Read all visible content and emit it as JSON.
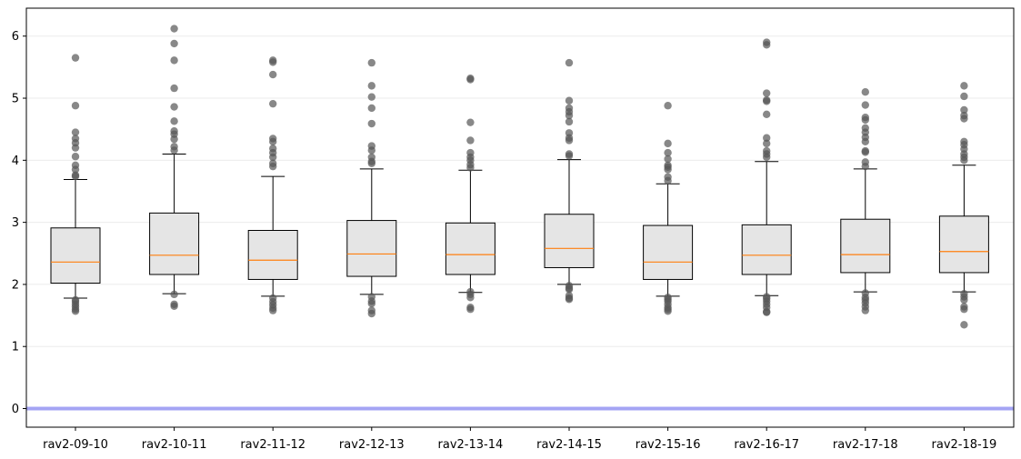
{
  "chart_data": {
    "type": "box",
    "title": "",
    "xlabel": "",
    "ylabel": "",
    "categories": [
      "rav2-09-10",
      "rav2-10-11",
      "rav2-11-12",
      "rav2-12-13",
      "rav2-13-14",
      "rav2-14-15",
      "rav2-15-16",
      "rav2-16-17",
      "rav2-17-18",
      "rav2-18-19"
    ],
    "ylim": [
      -0.3,
      6.45
    ],
    "yticks": [
      0,
      1,
      2,
      3,
      4,
      5,
      6
    ],
    "grid": "y",
    "reference_line": {
      "y": 0,
      "color": "#a4a4f4"
    },
    "colors": {
      "box_fill": "#e5e5e5",
      "median": "#ff7f0e",
      "outlier": "#555555",
      "grid": "#ebebeb"
    },
    "boxes": [
      {
        "whisker_low": 1.78,
        "q1": 2.02,
        "median": 2.36,
        "q3": 2.91,
        "whisker_high": 3.69,
        "outliers": [
          5.65,
          4.88,
          4.45,
          4.35,
          4.28,
          4.2,
          4.06,
          3.92,
          3.85,
          3.76,
          3.74,
          1.75,
          1.72,
          1.68,
          1.64,
          1.6,
          1.57
        ]
      },
      {
        "whisker_low": 1.85,
        "q1": 2.16,
        "median": 2.47,
        "q3": 3.15,
        "whisker_high": 4.1,
        "outliers": [
          6.12,
          5.88,
          5.61,
          5.16,
          4.86,
          4.63,
          4.47,
          4.42,
          4.34,
          4.22,
          4.16,
          1.84,
          1.68,
          1.65
        ]
      },
      {
        "whisker_low": 1.81,
        "q1": 2.08,
        "median": 2.39,
        "q3": 2.87,
        "whisker_high": 3.74,
        "outliers": [
          5.61,
          5.58,
          5.38,
          4.91,
          4.35,
          4.3,
          4.19,
          4.12,
          4.05,
          3.95,
          3.9,
          1.78,
          1.72,
          1.67,
          1.62,
          1.58
        ]
      },
      {
        "whisker_low": 1.84,
        "q1": 2.13,
        "median": 2.49,
        "q3": 3.03,
        "whisker_high": 3.86,
        "outliers": [
          5.57,
          5.2,
          5.02,
          4.84,
          4.59,
          4.23,
          4.16,
          4.05,
          3.98,
          3.95,
          1.8,
          1.73,
          1.69,
          1.58,
          1.53
        ]
      },
      {
        "whisker_low": 1.87,
        "q1": 2.16,
        "median": 2.48,
        "q3": 2.99,
        "whisker_high": 3.84,
        "outliers": [
          5.32,
          5.3,
          4.61,
          4.32,
          4.12,
          4.05,
          4.0,
          3.93,
          3.88,
          1.88,
          1.84,
          1.79,
          1.63,
          1.6
        ]
      },
      {
        "whisker_low": 2.0,
        "q1": 2.27,
        "median": 2.58,
        "q3": 3.13,
        "whisker_high": 4.01,
        "outliers": [
          5.57,
          4.96,
          4.84,
          4.78,
          4.72,
          4.62,
          4.44,
          4.36,
          4.32,
          4.1,
          4.07,
          1.98,
          1.94,
          1.92,
          1.82,
          1.78,
          1.76
        ]
      },
      {
        "whisker_low": 1.81,
        "q1": 2.08,
        "median": 2.36,
        "q3": 2.95,
        "whisker_high": 3.62,
        "outliers": [
          4.88,
          4.27,
          4.12,
          4.02,
          3.92,
          3.89,
          3.85,
          3.73,
          3.67,
          1.79,
          1.76,
          1.73,
          1.68,
          1.63,
          1.6,
          1.57
        ]
      },
      {
        "whisker_low": 1.82,
        "q1": 2.16,
        "median": 2.47,
        "q3": 2.96,
        "whisker_high": 3.98,
        "outliers": [
          5.9,
          5.86,
          5.08,
          4.97,
          4.95,
          4.74,
          4.36,
          4.27,
          4.15,
          4.1,
          4.05,
          1.8,
          1.77,
          1.73,
          1.68,
          1.63,
          1.56,
          1.55
        ]
      },
      {
        "whisker_low": 1.88,
        "q1": 2.19,
        "median": 2.48,
        "q3": 3.05,
        "whisker_high": 3.86,
        "outliers": [
          5.1,
          4.89,
          4.69,
          4.65,
          4.52,
          4.45,
          4.37,
          4.3,
          4.15,
          4.13,
          3.97,
          3.9,
          1.86,
          1.79,
          1.75,
          1.7,
          1.64,
          1.58
        ]
      },
      {
        "whisker_low": 1.88,
        "q1": 2.19,
        "median": 2.53,
        "q3": 3.1,
        "whisker_high": 3.92,
        "outliers": [
          5.2,
          5.03,
          4.81,
          4.72,
          4.67,
          4.3,
          4.25,
          4.18,
          4.1,
          4.05,
          4.0,
          1.85,
          1.8,
          1.75,
          1.64,
          1.6,
          1.35
        ]
      }
    ]
  }
}
